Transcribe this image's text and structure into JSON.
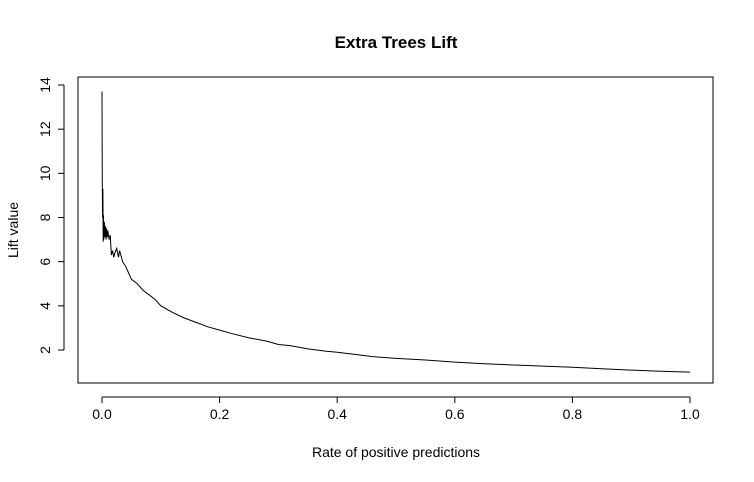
{
  "chart_data": {
    "type": "line",
    "title": "Extra Trees Lift",
    "xlabel": "Rate of positive predictions",
    "ylabel": "Lift value",
    "xlim": [
      0,
      1
    ],
    "ylim": [
      1,
      14
    ],
    "x_ticks": [
      "0.0",
      "0.2",
      "0.4",
      "0.6",
      "0.8",
      "1.0"
    ],
    "y_ticks": [
      "2",
      "4",
      "6",
      "8",
      "10",
      "12",
      "14"
    ],
    "grid": false,
    "legend": "none",
    "line_color": "#000000",
    "series": [
      {
        "x": [
          0.0,
          0.0005,
          0.001,
          0.0015,
          0.002,
          0.0025,
          0.003,
          0.004,
          0.005,
          0.006,
          0.007,
          0.008,
          0.009,
          0.01,
          0.012,
          0.014,
          0.016,
          0.018,
          0.02,
          0.022,
          0.025,
          0.028,
          0.03,
          0.035,
          0.04,
          0.05,
          0.06,
          0.07,
          0.08,
          0.09,
          0.1,
          0.12,
          0.14,
          0.16,
          0.18,
          0.2,
          0.22,
          0.25,
          0.28,
          0.3,
          0.32,
          0.35,
          0.38,
          0.4,
          0.43,
          0.46,
          0.5,
          0.55,
          0.6,
          0.65,
          0.7,
          0.75,
          0.8,
          0.85,
          0.9,
          0.95,
          1.0
        ],
        "y": [
          13.7,
          9.5,
          8.0,
          9.3,
          6.9,
          8.1,
          7.0,
          7.8,
          7.1,
          7.6,
          7.0,
          7.5,
          7.1,
          7.4,
          7.0,
          7.2,
          6.3,
          6.5,
          6.2,
          6.4,
          6.6,
          6.2,
          6.5,
          6.0,
          5.8,
          5.2,
          5.0,
          4.7,
          4.5,
          4.3,
          4.0,
          3.7,
          3.45,
          3.25,
          3.05,
          2.9,
          2.75,
          2.55,
          2.4,
          2.25,
          2.2,
          2.05,
          1.95,
          1.9,
          1.8,
          1.7,
          1.62,
          1.55,
          1.45,
          1.38,
          1.32,
          1.27,
          1.22,
          1.15,
          1.09,
          1.04,
          1.0
        ]
      }
    ]
  }
}
